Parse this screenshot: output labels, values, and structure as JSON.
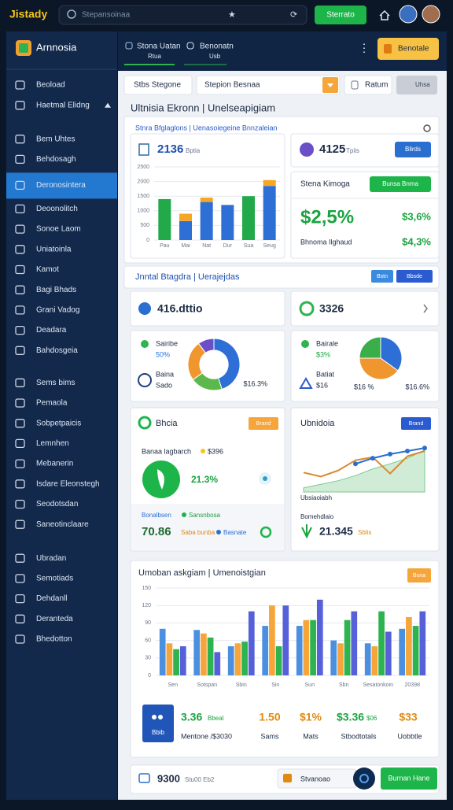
{
  "header": {
    "logo": "Jistady",
    "search": "Stepansoinaa",
    "button": "Sterrato"
  },
  "sidebar": {
    "brand": "Arnnosia",
    "items": [
      "Beoload",
      "Haetmal Elidng",
      "Bem Uhtes",
      "Behdosagh",
      "Deronosintera",
      "Deoonolitch",
      "Sonoe Laom",
      "Uniatoinla",
      "Kamot",
      "Bagi Bhads",
      "Grani Vadog",
      "Deadara",
      "Bahdosgeia",
      "Sems bims",
      "Pemaola",
      "Sobpetpaicis",
      "Lemnhen",
      "Mebanerin",
      "Isdare Eleonstegh",
      "Seodotsdan",
      "Saneotinclaare",
      "Ubradan",
      "Semotiads",
      "Dehdanll",
      "Deranteda",
      "Bhedotton"
    ]
  },
  "tabs": [
    {
      "title": "Stona Uatan",
      "sub": "Rtua"
    },
    {
      "title": "Benonatn",
      "sub": "Usb"
    }
  ],
  "top_button": "Benotale",
  "filters": {
    "input": "Stbs Stegone",
    "select": "Stepion Besnaa",
    "button": "Ratum",
    "button2": "Uhsa"
  },
  "page_title": "Ultnisia Ekronn | Unelseapigiam",
  "panel1": {
    "subtitle": "Stnra Bfglaglons | Uenasoiegeine Bnnzaleian",
    "bar_card": {
      "value": "2136",
      "label": "Bptia"
    },
    "card_a": {
      "value": "4125",
      "label": "Tpiis",
      "button": "Blirds"
    },
    "card_b": {
      "title": "Stena Kimoga",
      "button": "Bunsa Bnma",
      "big": "$2,5%",
      "right": "$3,6%",
      "label": "Bhnoma Ilghaud",
      "right2": "$4,3%"
    }
  },
  "panel2": {
    "title": "Jnntal Btagdra | Uerajejdas",
    "buttons": [
      "Bstn",
      "Bbsde"
    ],
    "card_a": "416.dttio",
    "card_b": "3326",
    "donut_a": {
      "legend": [
        [
          "Sairibe",
          "50%"
        ],
        [
          "Baina",
          "Sado"
        ]
      ],
      "label": "$16.3%"
    },
    "donut_b": {
      "legend": [
        [
          "Bairale",
          "$3%"
        ],
        [
          "Batiat",
          "$16"
        ]
      ],
      "label_a": "$16 %",
      "label_b": "$16.6%"
    }
  },
  "panel3": {
    "left": {
      "title": "Bhcia",
      "button": "Brand",
      "line1": "Banaa lagbarch",
      "line1_value": "$396",
      "value": "21.3%",
      "line2a": "Bonalbsen",
      "line2b": "Sansnbosa",
      "big": "70.86",
      "tag": "Saba bunba",
      "tag2": "Basnate"
    },
    "right": {
      "title": "Ubnidoia",
      "button": "Brand",
      "label1": "Ubsiaoiabh",
      "label2": "Bomehdlaio",
      "value": "21.345",
      "tag": "Sblis"
    }
  },
  "panel4": {
    "title": "Umoban askgiam | Umenoistgian",
    "button": "Buna",
    "box": "Bbib",
    "stats": [
      {
        "value": "3.36",
        "sub": "Bbeal",
        "label": "Mentone /$3030"
      },
      {
        "value": "1.50",
        "label": "Sams"
      },
      {
        "value": "$1%",
        "label": "Mats"
      },
      {
        "value": "$3.36",
        "sub": "$06",
        "label": "Stbodtotals"
      },
      {
        "value": "$33",
        "label": "Uobbtle"
      }
    ]
  },
  "footer": {
    "value": "9300",
    "sub": "Stu00 Eb2",
    "input": "Stvanoao",
    "button": "Burnan Hane"
  },
  "chart_data": [
    {
      "type": "bar",
      "stacked": true,
      "grid": true,
      "categories": [
        "Pau",
        "Mai",
        "Nat",
        "Dur",
        "Sua",
        "Seug"
      ],
      "series": [
        {
          "colors": [
            "#22a94a",
            "#2e6fd6",
            "#2e6fd6",
            "#2e6fd6",
            "#22a94a",
            "#2e6fd6"
          ],
          "values": [
            1400,
            650,
            1300,
            1200,
            1500,
            1850
          ]
        },
        {
          "color": "#f5a623",
          "values": [
            null,
            250,
            150,
            null,
            null,
            200
          ]
        }
      ],
      "ylim": [
        0,
        2500
      ],
      "yticks": [
        0,
        500,
        1000,
        1500,
        2000,
        2500
      ]
    },
    {
      "type": "pie",
      "hole": 0.55,
      "values": [
        45,
        20,
        25,
        10
      ],
      "colors": [
        "#2d6fd6",
        "#5cb84a",
        "#f0962e",
        "#6a4fc8"
      ]
    },
    {
      "type": "pie",
      "hole": 0,
      "values": [
        35,
        40,
        25
      ],
      "colors": [
        "#2d6fd6",
        "#f0962e",
        "#3aae49"
      ]
    },
    {
      "type": "line",
      "ylim": [
        0,
        100
      ],
      "series": [
        {
          "color": "#7cc98a",
          "area": true,
          "values": [
            8,
            15,
            22,
            32,
            45,
            55,
            66,
            82
          ]
        },
        {
          "color": "#d98a2b",
          "values": [
            38,
            30,
            42,
            62,
            68,
            36,
            70,
            80
          ]
        },
        {
          "color": "#2a6fd0",
          "markers": true,
          "values": [
            null,
            null,
            null,
            55,
            66,
            74,
            80,
            86
          ]
        }
      ]
    },
    {
      "type": "bar",
      "stacked": false,
      "grid": true,
      "categories": [
        "Sen",
        "Sotspan",
        "Sbin",
        "Sin",
        "Sun",
        "Sbn",
        "Sesatonkoin",
        "20398"
      ],
      "series": [
        {
          "color": "#4a8fe0",
          "values": [
            80,
            78,
            50,
            85,
            85,
            60,
            55,
            80
          ]
        },
        {
          "color": "#f5a53a",
          "values": [
            55,
            72,
            55,
            120,
            95,
            55,
            50,
            100
          ]
        },
        {
          "color": "#2db34f",
          "values": [
            45,
            65,
            58,
            50,
            95,
            95,
            110,
            85
          ]
        },
        {
          "color": "#5660d8",
          "values": [
            50,
            40,
            110,
            120,
            130,
            110,
            75,
            110
          ]
        }
      ],
      "ylim": [
        0,
        150
      ],
      "yticks": [
        0,
        30,
        60,
        90,
        120,
        150
      ]
    }
  ]
}
